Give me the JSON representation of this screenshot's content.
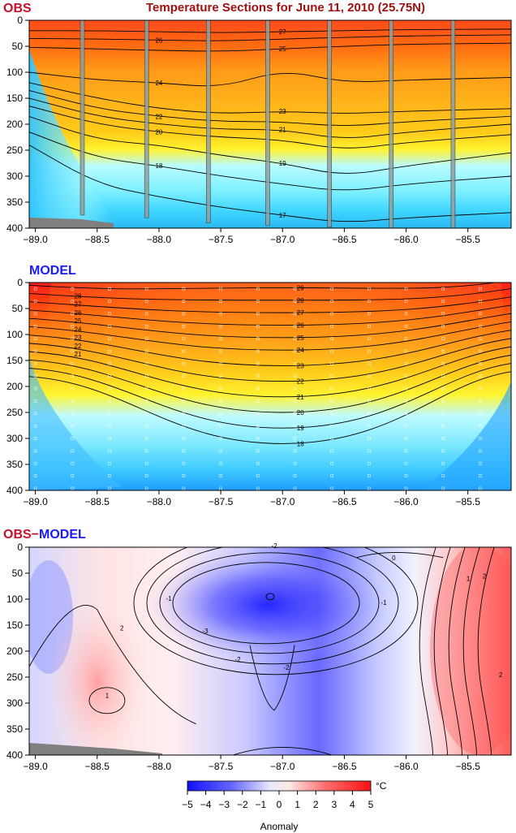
{
  "title": "Temperature Sections for June 11, 2010 (25.75N)",
  "colors": {
    "label_red": "#c8102e",
    "label_blue": "#1a1aff",
    "title_red": "#a01010"
  },
  "chart_data": [
    {
      "name": "OBS",
      "type": "heatmap",
      "x_ticks": [
        "−89.0",
        "−88.5",
        "−88.0",
        "−87.5",
        "−87.0",
        "−86.5",
        "−86.0",
        "−85.5"
      ],
      "x_values": [
        -89.0,
        -88.5,
        -88.0,
        -87.5,
        -87.0,
        -86.5,
        -86.0,
        -85.5
      ],
      "y_ticks": [
        "0",
        "50",
        "100",
        "150",
        "200",
        "250",
        "300",
        "350",
        "400"
      ],
      "y_values": [
        0,
        50,
        100,
        150,
        200,
        250,
        300,
        350,
        400
      ],
      "xlim": [
        -89.05,
        -85.15
      ],
      "ylim": [
        0,
        400
      ],
      "y_inverted": true,
      "contour_levels": [
        17,
        18,
        19,
        20,
        21,
        22,
        23,
        24,
        25,
        26,
        27
      ],
      "contour_labels": [
        "17",
        "18",
        "19",
        "20",
        "21",
        "22",
        "23",
        "24",
        "25",
        "26",
        "27"
      ],
      "contour_depths_offshore": [
        {
          "level": 27,
          "depth": [
            20,
            20,
            22,
            24,
            22,
            20,
            18,
            17
          ]
        },
        {
          "level": 26,
          "depth": [
            35,
            36,
            38,
            40,
            36,
            33,
            30,
            28
          ]
        },
        {
          "level": 25,
          "depth": [
            52,
            55,
            58,
            60,
            55,
            50,
            46,
            44
          ]
        },
        {
          "level": 24,
          "depth": [
            100,
            115,
            120,
            130,
            95,
            120,
            115,
            110
          ]
        },
        {
          "level": 23,
          "depth": [
            120,
            150,
            170,
            180,
            175,
            180,
            175,
            170
          ]
        },
        {
          "level": 22,
          "depth": [
            135,
            170,
            185,
            195,
            195,
            205,
            195,
            185
          ]
        },
        {
          "level": 21,
          "depth": [
            150,
            185,
            200,
            210,
            210,
            230,
            215,
            200
          ]
        },
        {
          "level": 20,
          "depth": [
            165,
            200,
            215,
            225,
            230,
            250,
            235,
            220
          ]
        },
        {
          "level": 19,
          "depth": [
            185,
            230,
            240,
            260,
            275,
            300,
            280,
            255
          ]
        },
        {
          "level": 18,
          "depth": [
            215,
            265,
            280,
            300,
            315,
            330,
            315,
            300
          ]
        },
        {
          "level": 17,
          "depth": [
            240,
            315,
            340,
            360,
            375,
            390,
            380,
            370
          ]
        }
      ],
      "station_lon": [
        -88.62,
        -88.1,
        -87.6,
        -87.12,
        -86.62,
        -86.12,
        -85.62
      ],
      "bottom_depth": [
        375,
        380,
        390,
        395,
        398,
        400,
        400
      ]
    },
    {
      "name": "MODEL",
      "type": "heatmap",
      "x_ticks": [
        "−89.0",
        "−88.5",
        "−88.0",
        "−87.5",
        "−87.0",
        "−86.5",
        "−86.0",
        "−85.5"
      ],
      "y_ticks": [
        "0",
        "50",
        "100",
        "150",
        "200",
        "250",
        "300",
        "350",
        "400"
      ],
      "xlim": [
        -89.05,
        -85.15
      ],
      "ylim": [
        0,
        400
      ],
      "y_inverted": true,
      "contour_levels": [
        18,
        19,
        20,
        21,
        22,
        23,
        24,
        25,
        26,
        27,
        28,
        29
      ],
      "contour_labels": [
        "18",
        "19",
        "20",
        "21",
        "22",
        "23",
        "24",
        "25",
        "26",
        "27",
        "28",
        "29"
      ],
      "core_lon": -87.0,
      "core_depth_m": 150
    },
    {
      "name": "OBS−MODEL",
      "type": "heatmap",
      "x_ticks": [
        "−89.0",
        "−88.5",
        "−88.0",
        "−87.5",
        "−87.0",
        "−86.5",
        "−86.0",
        "−85.5"
      ],
      "y_ticks": [
        "0",
        "50",
        "100",
        "150",
        "200",
        "250",
        "300",
        "350",
        "400"
      ],
      "xlim": [
        -89.05,
        -85.15
      ],
      "ylim": [
        0,
        400
      ],
      "y_inverted": true,
      "contour_labels": [
        "-3",
        "-2",
        "-2",
        "-2",
        "-1",
        "-1",
        "0",
        "1",
        "1",
        "2",
        "2",
        "2"
      ],
      "min_lon": -87.1,
      "min_depth_m": 95,
      "max_lon": -85.3,
      "max_depth_m": 150
    }
  ],
  "colorbar": {
    "ticks": [
      "−5",
      "−4",
      "−3",
      "−2",
      "−1",
      "0",
      "1",
      "2",
      "3",
      "4",
      "5"
    ],
    "range": [
      -5,
      5
    ],
    "unit": "°C",
    "label": "Anomaly"
  }
}
